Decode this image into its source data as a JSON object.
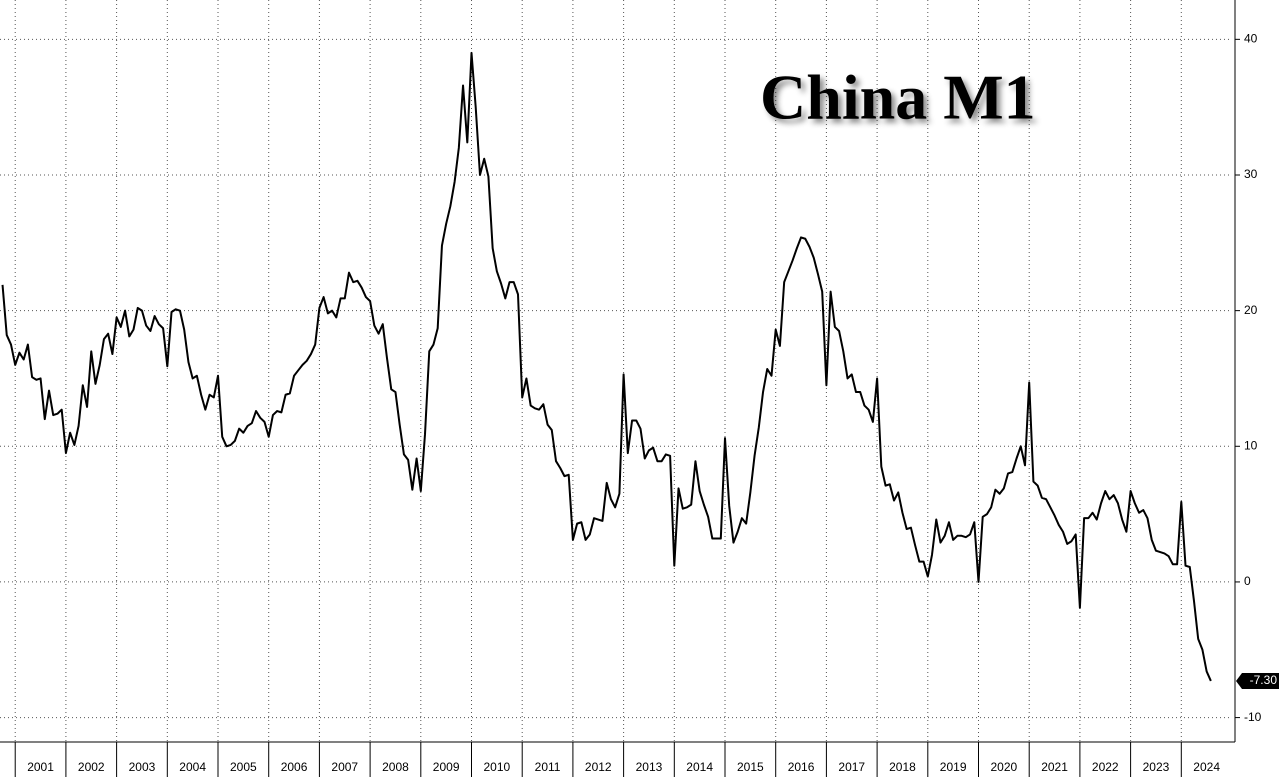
{
  "chart_data": {
    "type": "line",
    "title": "China M1",
    "x": [
      2000.75,
      2000.833,
      2000.917,
      2001.0,
      2001.083,
      2001.167,
      2001.25,
      2001.333,
      2001.417,
      2001.5,
      2001.583,
      2001.667,
      2001.75,
      2001.833,
      2001.917,
      2002.0,
      2002.083,
      2002.167,
      2002.25,
      2002.333,
      2002.417,
      2002.5,
      2002.583,
      2002.667,
      2002.75,
      2002.833,
      2002.917,
      2003.0,
      2003.083,
      2003.167,
      2003.25,
      2003.333,
      2003.417,
      2003.5,
      2003.583,
      2003.667,
      2003.75,
      2003.833,
      2003.917,
      2004.0,
      2004.083,
      2004.167,
      2004.25,
      2004.333,
      2004.417,
      2004.5,
      2004.583,
      2004.667,
      2004.75,
      2004.833,
      2004.917,
      2005.0,
      2005.083,
      2005.167,
      2005.25,
      2005.333,
      2005.417,
      2005.5,
      2005.583,
      2005.667,
      2005.75,
      2005.833,
      2005.917,
      2006.0,
      2006.083,
      2006.167,
      2006.25,
      2006.333,
      2006.417,
      2006.5,
      2006.583,
      2006.667,
      2006.75,
      2006.833,
      2006.917,
      2007.0,
      2007.083,
      2007.167,
      2007.25,
      2007.333,
      2007.417,
      2007.5,
      2007.583,
      2007.667,
      2007.75,
      2007.833,
      2007.917,
      2008.0,
      2008.083,
      2008.167,
      2008.25,
      2008.333,
      2008.417,
      2008.5,
      2008.583,
      2008.667,
      2008.75,
      2008.833,
      2008.917,
      2009.0,
      2009.083,
      2009.167,
      2009.25,
      2009.333,
      2009.417,
      2009.5,
      2009.583,
      2009.667,
      2009.75,
      2009.833,
      2009.917,
      2010.0,
      2010.083,
      2010.167,
      2010.25,
      2010.333,
      2010.417,
      2010.5,
      2010.583,
      2010.667,
      2010.75,
      2010.833,
      2010.917,
      2011.0,
      2011.083,
      2011.167,
      2011.25,
      2011.333,
      2011.417,
      2011.5,
      2011.583,
      2011.667,
      2011.75,
      2011.833,
      2011.917,
      2012.0,
      2012.083,
      2012.167,
      2012.25,
      2012.333,
      2012.417,
      2012.5,
      2012.583,
      2012.667,
      2012.75,
      2012.833,
      2012.917,
      2013.0,
      2013.083,
      2013.167,
      2013.25,
      2013.333,
      2013.417,
      2013.5,
      2013.583,
      2013.667,
      2013.75,
      2013.833,
      2013.917,
      2014.0,
      2014.083,
      2014.167,
      2014.25,
      2014.333,
      2014.417,
      2014.5,
      2014.583,
      2014.667,
      2014.75,
      2014.833,
      2014.917,
      2015.0,
      2015.083,
      2015.167,
      2015.25,
      2015.333,
      2015.417,
      2015.5,
      2015.583,
      2015.667,
      2015.75,
      2015.833,
      2015.917,
      2016.0,
      2016.083,
      2016.167,
      2016.25,
      2016.333,
      2016.417,
      2016.5,
      2016.583,
      2016.667,
      2016.75,
      2016.833,
      2016.917,
      2017.0,
      2017.083,
      2017.167,
      2017.25,
      2017.333,
      2017.417,
      2017.5,
      2017.583,
      2017.667,
      2017.75,
      2017.833,
      2017.917,
      2018.0,
      2018.083,
      2018.167,
      2018.25,
      2018.333,
      2018.417,
      2018.5,
      2018.583,
      2018.667,
      2018.75,
      2018.833,
      2018.917,
      2019.0,
      2019.083,
      2019.167,
      2019.25,
      2019.333,
      2019.417,
      2019.5,
      2019.583,
      2019.667,
      2019.75,
      2019.833,
      2019.917,
      2020.0,
      2020.083,
      2020.167,
      2020.25,
      2020.333,
      2020.417,
      2020.5,
      2020.583,
      2020.667,
      2020.75,
      2020.833,
      2020.917,
      2021.0,
      2021.083,
      2021.167,
      2021.25,
      2021.333,
      2021.417,
      2021.5,
      2021.583,
      2021.667,
      2021.75,
      2021.833,
      2021.917,
      2022.0,
      2022.083,
      2022.167,
      2022.25,
      2022.333,
      2022.417,
      2022.5,
      2022.583,
      2022.667,
      2022.75,
      2022.833,
      2022.917,
      2023.0,
      2023.083,
      2023.167,
      2023.25,
      2023.333,
      2023.417,
      2023.5,
      2023.583,
      2023.667,
      2023.75,
      2023.833,
      2023.917,
      2024.0,
      2024.083,
      2024.167,
      2024.25,
      2024.333,
      2024.417,
      2024.5,
      2024.583
    ],
    "series": [
      {
        "color": "#000000",
        "values": [
          21.9,
          18.2,
          17.5,
          16.0,
          16.9,
          16.4,
          17.5,
          15.1,
          14.9,
          15.0,
          12.0,
          14.1,
          12.3,
          12.4,
          12.7,
          9.5,
          11.0,
          10.1,
          11.5,
          14.5,
          12.9,
          17.0,
          14.6,
          16.0,
          17.9,
          18.3,
          16.8,
          19.5,
          18.8,
          20.0,
          18.1,
          18.6,
          20.2,
          20.0,
          18.9,
          18.5,
          19.6,
          19.0,
          18.7,
          15.9,
          19.9,
          20.1,
          20.0,
          18.6,
          16.2,
          15.0,
          15.2,
          13.8,
          12.7,
          13.8,
          13.6,
          15.2,
          10.7,
          10.0,
          10.1,
          10.4,
          11.3,
          11.0,
          11.5,
          11.7,
          12.6,
          12.1,
          11.8,
          10.7,
          12.3,
          12.6,
          12.5,
          13.8,
          13.9,
          15.2,
          15.6,
          16.0,
          16.3,
          16.8,
          17.5,
          20.2,
          21.0,
          19.8,
          20.0,
          19.5,
          20.9,
          20.9,
          22.8,
          22.1,
          22.2,
          21.7,
          21.0,
          20.7,
          18.9,
          18.3,
          19.0,
          16.5,
          14.2,
          14.0,
          11.6,
          9.4,
          9.0,
          6.8,
          9.1,
          6.7,
          10.9,
          17.0,
          17.5,
          18.7,
          24.8,
          26.4,
          27.7,
          29.5,
          32.0,
          36.6,
          32.4,
          39.0,
          35.0,
          30.0,
          31.2,
          29.9,
          24.6,
          22.9,
          22.0,
          20.9,
          22.1,
          22.1,
          21.2,
          13.6,
          15.0,
          13.0,
          12.8,
          12.7,
          13.1,
          11.6,
          11.2,
          8.9,
          8.4,
          7.8,
          7.9,
          3.1,
          4.3,
          4.4,
          3.1,
          3.5,
          4.7,
          4.6,
          4.5,
          7.3,
          6.1,
          5.5,
          6.5,
          15.3,
          9.5,
          11.9,
          11.9,
          11.3,
          9.1,
          9.7,
          9.9,
          8.9,
          8.9,
          9.4,
          9.3,
          1.2,
          6.9,
          5.4,
          5.5,
          5.7,
          8.9,
          6.7,
          5.7,
          4.8,
          3.2,
          3.2,
          3.2,
          10.6,
          5.6,
          2.9,
          3.7,
          4.7,
          4.3,
          6.6,
          9.3,
          11.4,
          14.0,
          15.7,
          15.2,
          18.6,
          17.4,
          22.1,
          22.9,
          23.7,
          24.6,
          25.4,
          25.3,
          24.7,
          23.9,
          22.7,
          21.4,
          14.5,
          21.4,
          18.8,
          18.5,
          17.0,
          15.0,
          15.3,
          14.0,
          14.0,
          13.0,
          12.7,
          11.8,
          15.0,
          8.5,
          7.1,
          7.2,
          6.0,
          6.6,
          5.1,
          3.9,
          4.0,
          2.7,
          1.5,
          1.5,
          0.4,
          2.0,
          4.6,
          2.9,
          3.4,
          4.4,
          3.1,
          3.4,
          3.4,
          3.3,
          3.5,
          4.4,
          0.0,
          4.8,
          5.0,
          5.5,
          6.8,
          6.5,
          6.9,
          8.0,
          8.1,
          9.1,
          10.0,
          8.6,
          14.7,
          7.4,
          7.1,
          6.2,
          6.1,
          5.5,
          4.9,
          4.2,
          3.7,
          2.8,
          3.0,
          3.5,
          -1.9,
          4.7,
          4.7,
          5.1,
          4.6,
          5.8,
          6.7,
          6.1,
          6.4,
          5.8,
          4.6,
          3.7,
          6.7,
          5.8,
          5.1,
          5.3,
          4.7,
          3.1,
          2.3,
          2.2,
          2.1,
          1.9,
          1.3,
          1.3,
          5.9,
          1.2,
          1.1,
          -1.4,
          -4.2,
          -5.0,
          -6.6,
          -7.3
        ]
      }
    ],
    "xlim": [
      2000.7,
      2025.0
    ],
    "xticks": [
      2001,
      2002,
      2003,
      2004,
      2005,
      2006,
      2007,
      2008,
      2009,
      2010,
      2011,
      2012,
      2013,
      2014,
      2015,
      2016,
      2017,
      2018,
      2019,
      2020,
      2021,
      2022,
      2023,
      2024
    ],
    "ylim": [
      -11.8,
      42.9
    ],
    "yticks": [
      40,
      30,
      20,
      10,
      0,
      -10
    ],
    "grid": true,
    "last_value": {
      "value": -7.3,
      "label": "-7.30"
    }
  }
}
